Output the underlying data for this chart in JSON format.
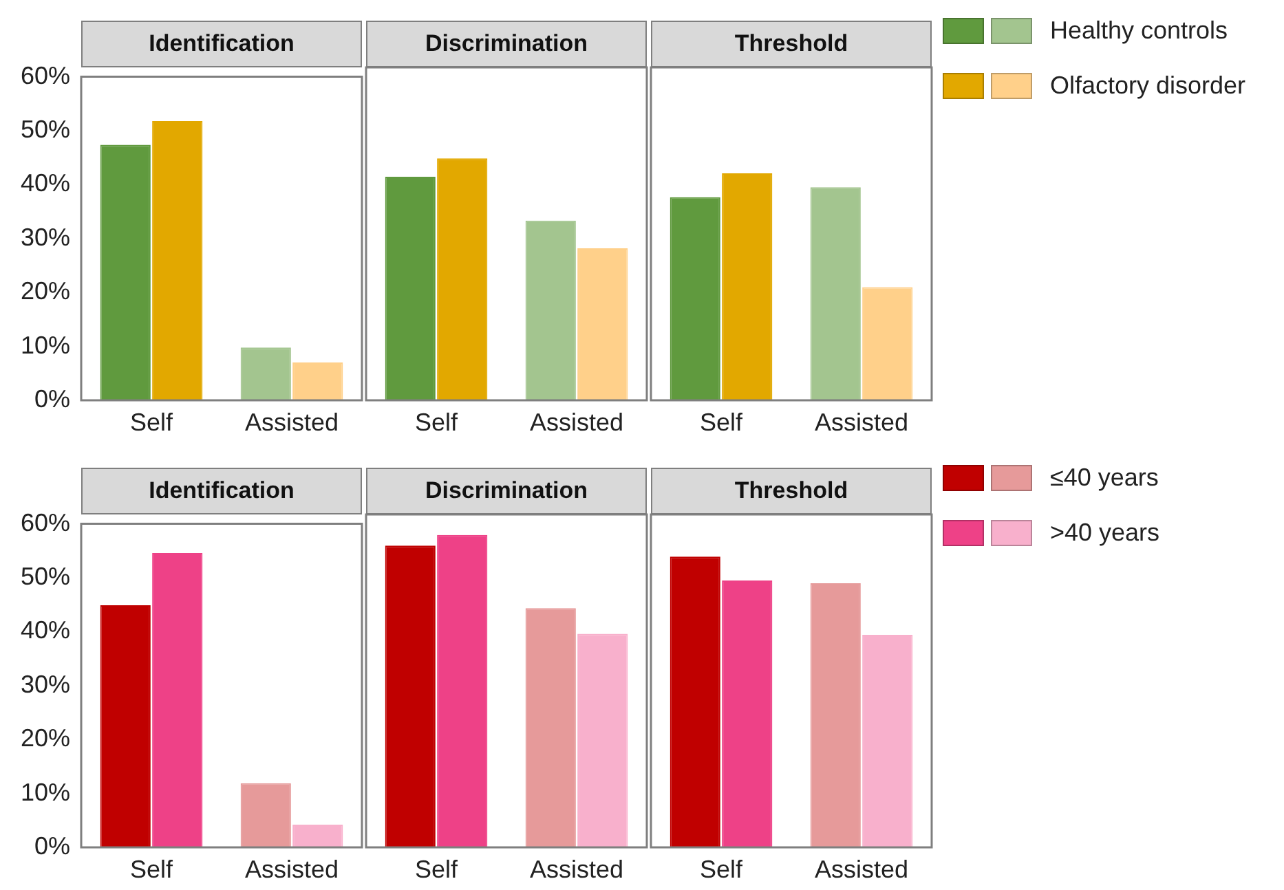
{
  "chart_data": [
    {
      "type": "bar",
      "title": "Identification",
      "categories": [
        "Self",
        "Assisted"
      ],
      "ylim": [
        0,
        60
      ],
      "yticks": [
        {
          "value": 0,
          "label": "0%"
        },
        {
          "value": 10,
          "label": "10%"
        },
        {
          "value": 20,
          "label": "20%"
        },
        {
          "value": 30,
          "label": "30%"
        },
        {
          "value": 40,
          "label": "40%"
        },
        {
          "value": 50,
          "label": "50%"
        },
        {
          "value": 60,
          "label": "60%"
        }
      ],
      "legend": "right",
      "series": [
        {
          "colors": [
            "#609a3e",
            "#a3c58f"
          ],
          "values": [
            47.4,
            9.8
          ]
        },
        {
          "colors": [
            "#e2a800",
            "#ffd08a"
          ],
          "values": [
            51.8,
            7.0
          ]
        }
      ]
    },
    {
      "type": "bar",
      "title": "Discrimination",
      "categories": [
        "Self",
        "Assisted"
      ],
      "ylim": [
        0,
        60
      ],
      "tick_labels": "x",
      "legend": "right",
      "series": [
        {
          "colors": [
            "#609a3e",
            "#a3c58f"
          ],
          "values": [
            40.3,
            32.4
          ]
        },
        {
          "colors": [
            "#e2a800",
            "#ffd08a"
          ],
          "values": [
            43.6,
            27.4
          ]
        }
      ]
    },
    {
      "type": "bar",
      "title": "Threshold",
      "categories": [
        "Self",
        "Assisted"
      ],
      "ylim": [
        0,
        60
      ],
      "tick_labels": "x",
      "legend": "right",
      "series": [
        {
          "name": "Healthy controls",
          "colors": [
            "#609a3e",
            "#a3c58f"
          ],
          "values": [
            36.6,
            38.4
          ]
        },
        {
          "name": "Olfactory disorder",
          "colors": [
            "#e2a800",
            "#ffd08a"
          ],
          "values": [
            40.9,
            20.4
          ]
        }
      ]
    },
    {
      "type": "bar",
      "title": "Identification",
      "categories": [
        "Self",
        "Assisted"
      ],
      "ylim": [
        0,
        60
      ],
      "yticks": [
        {
          "value": 0,
          "label": "0%"
        },
        {
          "value": 10,
          "label": "10%"
        },
        {
          "value": 20,
          "label": "20%"
        },
        {
          "value": 30,
          "label": "30%"
        },
        {
          "value": 40,
          "label": "40%"
        },
        {
          "value": 50,
          "label": "50%"
        },
        {
          "value": 60,
          "label": "60%"
        }
      ],
      "legend": "right",
      "series": [
        {
          "colors": [
            "#c00000",
            "#e69a9a"
          ],
          "values": [
            44.9,
            11.9
          ]
        },
        {
          "colors": [
            "#ee4187",
            "#f8b0cc"
          ],
          "values": [
            54.6,
            4.2
          ]
        }
      ]
    },
    {
      "type": "bar",
      "title": "Discrimination",
      "categories": [
        "Self",
        "Assisted"
      ],
      "ylim": [
        0,
        60
      ],
      "tick_labels": "x",
      "legend": "right",
      "series": [
        {
          "colors": [
            "#c00000",
            "#e69a9a"
          ],
          "values": [
            54.4,
            43.1
          ]
        },
        {
          "colors": [
            "#ee4187",
            "#f8b0cc"
          ],
          "values": [
            56.3,
            38.5
          ]
        }
      ]
    },
    {
      "type": "bar",
      "title": "Threshold",
      "categories": [
        "Self",
        "Assisted"
      ],
      "ylim": [
        0,
        60
      ],
      "tick_labels": "x",
      "legend": "right",
      "series": [
        {
          "name": "≤40 years",
          "colors": [
            "#c00000",
            "#e69a9a"
          ],
          "values": [
            52.4,
            47.6
          ]
        },
        {
          "name": ">40 years",
          "colors": [
            "#ee4187",
            "#f8b0cc"
          ],
          "values": [
            48.1,
            38.3
          ]
        }
      ]
    }
  ]
}
